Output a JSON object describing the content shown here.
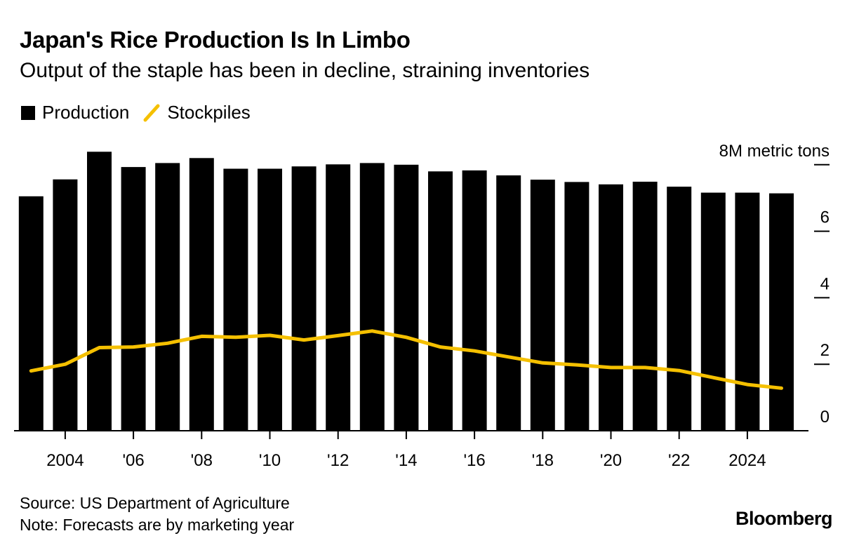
{
  "header": {
    "title": "Japan's Rice Production Is In Limbo",
    "subtitle": "Output of the staple has been in decline, straining inventories"
  },
  "legend": {
    "production": "Production",
    "stockpiles": "Stockpiles"
  },
  "colors": {
    "production": "#000000",
    "stockpiles": "#f5c000",
    "axis": "#000000",
    "background": "#ffffff"
  },
  "footer": {
    "source": "Source: US Department of Agriculture",
    "note": "Note: Forecasts are by marketing year",
    "brand": "Bloomberg"
  },
  "chart_data": {
    "type": "bar",
    "unit_label": "8M metric tons",
    "x": [
      2003,
      2004,
      2005,
      2006,
      2007,
      2008,
      2009,
      2010,
      2011,
      2012,
      2013,
      2014,
      2015,
      2016,
      2017,
      2018,
      2019,
      2020,
      2021,
      2022,
      2023,
      2024,
      2025
    ],
    "series": [
      {
        "name": "Production",
        "kind": "bar",
        "values": [
          7.05,
          7.56,
          8.39,
          7.93,
          8.05,
          8.2,
          7.88,
          7.88,
          7.95,
          8.01,
          8.05,
          8.0,
          7.8,
          7.83,
          7.68,
          7.55,
          7.48,
          7.41,
          7.49,
          7.34,
          7.16,
          7.16,
          7.14
        ]
      },
      {
        "name": "Stockpiles",
        "kind": "line",
        "values": [
          1.8,
          2.0,
          2.5,
          2.52,
          2.63,
          2.84,
          2.81,
          2.87,
          2.73,
          2.86,
          3.0,
          2.81,
          2.52,
          2.4,
          2.22,
          2.04,
          1.98,
          1.9,
          1.9,
          1.81,
          1.6,
          1.39,
          1.28
        ]
      }
    ],
    "y_ticks": [
      {
        "value": 0,
        "label": "0"
      },
      {
        "value": 2,
        "label": "2"
      },
      {
        "value": 4,
        "label": "4"
      },
      {
        "value": 6,
        "label": "6"
      },
      {
        "value": 8,
        "label": "8M metric tons"
      }
    ],
    "x_ticks": [
      {
        "value": 2004,
        "label": "2004"
      },
      {
        "value": 2006,
        "label": "'06"
      },
      {
        "value": 2008,
        "label": "'08"
      },
      {
        "value": 2010,
        "label": "'10"
      },
      {
        "value": 2012,
        "label": "'12"
      },
      {
        "value": 2014,
        "label": "'14"
      },
      {
        "value": 2016,
        "label": "'16"
      },
      {
        "value": 2018,
        "label": "'18"
      },
      {
        "value": 2020,
        "label": "'20"
      },
      {
        "value": 2022,
        "label": "'22"
      },
      {
        "value": 2024,
        "label": "2024"
      }
    ],
    "ylim": [
      0,
      8
    ],
    "legend_position": "top-left",
    "grid": false
  }
}
